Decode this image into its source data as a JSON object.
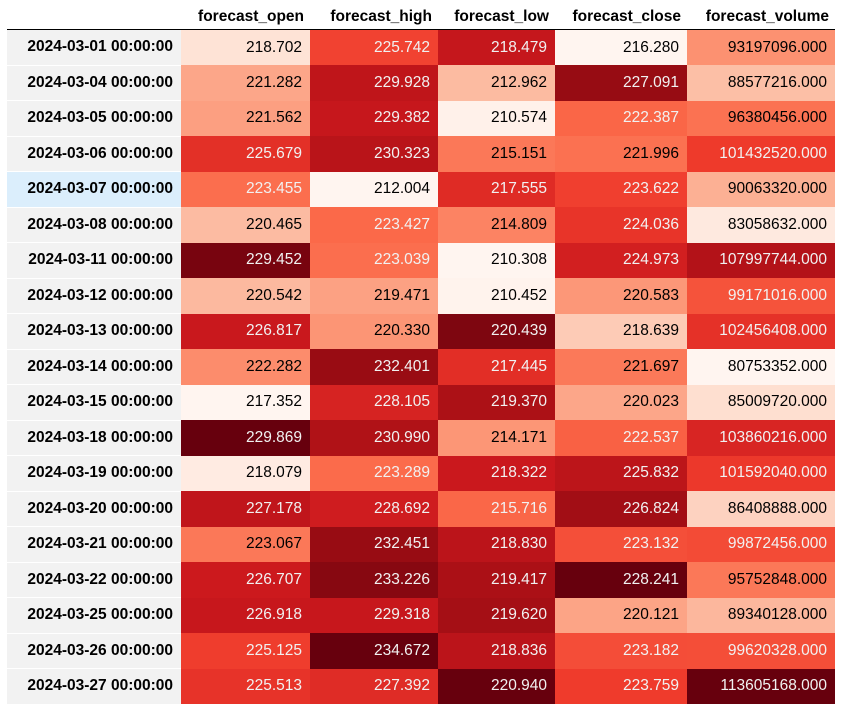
{
  "columns": [
    "forecast_open",
    "forecast_high",
    "forecast_low",
    "forecast_close",
    "forecast_volume"
  ],
  "highlighted_row_index": 4,
  "colormap": {
    "name": "Reds",
    "stops": [
      "#fff5f0",
      "#fee0d2",
      "#fcbba1",
      "#fc9272",
      "#fb6a4a",
      "#ef3b2c",
      "#cb181d",
      "#a50f15",
      "#67000d"
    ]
  },
  "rows": [
    {
      "date": "2024-03-01 00:00:00",
      "values": [
        "218.702",
        "225.742",
        "218.479",
        "216.280",
        "93197096.000"
      ]
    },
    {
      "date": "2024-03-04 00:00:00",
      "values": [
        "221.282",
        "229.928",
        "212.962",
        "227.091",
        "88577216.000"
      ]
    },
    {
      "date": "2024-03-05 00:00:00",
      "values": [
        "221.562",
        "229.382",
        "210.574",
        "222.387",
        "96380456.000"
      ]
    },
    {
      "date": "2024-03-06 00:00:00",
      "values": [
        "225.679",
        "230.323",
        "215.151",
        "221.996",
        "101432520.000"
      ]
    },
    {
      "date": "2024-03-07 00:00:00",
      "values": [
        "223.455",
        "212.004",
        "217.555",
        "223.622",
        "90063320.000"
      ]
    },
    {
      "date": "2024-03-08 00:00:00",
      "values": [
        "220.465",
        "223.427",
        "214.809",
        "224.036",
        "83058632.000"
      ]
    },
    {
      "date": "2024-03-11 00:00:00",
      "values": [
        "229.452",
        "223.039",
        "210.308",
        "224.973",
        "107997744.000"
      ]
    },
    {
      "date": "2024-03-12 00:00:00",
      "values": [
        "220.542",
        "219.471",
        "210.452",
        "220.583",
        "99171016.000"
      ]
    },
    {
      "date": "2024-03-13 00:00:00",
      "values": [
        "226.817",
        "220.330",
        "220.439",
        "218.639",
        "102456408.000"
      ]
    },
    {
      "date": "2024-03-14 00:00:00",
      "values": [
        "222.282",
        "232.401",
        "217.445",
        "221.697",
        "80753352.000"
      ]
    },
    {
      "date": "2024-03-15 00:00:00",
      "values": [
        "217.352",
        "228.105",
        "219.370",
        "220.023",
        "85009720.000"
      ]
    },
    {
      "date": "2024-03-18 00:00:00",
      "values": [
        "229.869",
        "230.990",
        "214.171",
        "222.537",
        "103860216.000"
      ]
    },
    {
      "date": "2024-03-19 00:00:00",
      "values": [
        "218.079",
        "223.289",
        "218.322",
        "225.832",
        "101592040.000"
      ]
    },
    {
      "date": "2024-03-20 00:00:00",
      "values": [
        "227.178",
        "228.692",
        "215.716",
        "226.824",
        "86408888.000"
      ]
    },
    {
      "date": "2024-03-21 00:00:00",
      "values": [
        "223.067",
        "232.451",
        "218.830",
        "223.132",
        "99872456.000"
      ]
    },
    {
      "date": "2024-03-22 00:00:00",
      "values": [
        "226.707",
        "233.226",
        "219.417",
        "228.241",
        "95752848.000"
      ]
    },
    {
      "date": "2024-03-25 00:00:00",
      "values": [
        "226.918",
        "229.318",
        "219.620",
        "220.121",
        "89340128.000"
      ]
    },
    {
      "date": "2024-03-26 00:00:00",
      "values": [
        "225.125",
        "234.672",
        "218.836",
        "223.182",
        "99620328.000"
      ]
    },
    {
      "date": "2024-03-27 00:00:00",
      "values": [
        "225.513",
        "227.392",
        "220.940",
        "223.759",
        "113605168.000"
      ]
    }
  ]
}
